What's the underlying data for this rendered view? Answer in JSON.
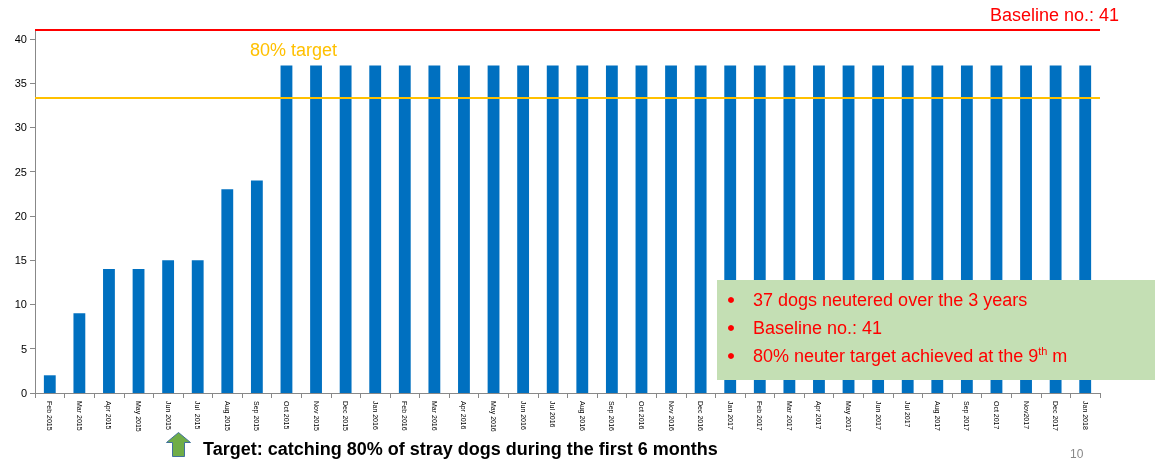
{
  "chart_data": {
    "type": "bar",
    "categories": [
      "Feb 2015",
      "Mar 2015",
      "Apr 2015",
      "May 2015",
      "Jun 2015",
      "Jul  2015",
      "Aug 2015",
      "Sep 2015",
      "Oct 2015",
      "Nov 2015",
      "Dec 2015",
      "Jan 2016",
      "Feb 2016",
      "Mar 2016",
      "Apr 2016",
      "May 2016",
      "Jun 2016",
      "Jul 2016",
      "Aug 2016",
      "Sep 2016",
      "Oct 2016",
      "Nov 2016",
      "Dec 2016",
      "Jan 2017",
      "Feb 2017",
      "Mar 2017",
      "Apr 2017",
      "May 2017",
      "Jun 2017",
      "Jul 2017",
      "Aug 2017",
      "Sep 2017",
      "Oct 2017",
      "Nov2017",
      "Dec 2017",
      "Jan 2018"
    ],
    "values": [
      2,
      9,
      14,
      14,
      15,
      15,
      23,
      24,
      37,
      37,
      37,
      37,
      37,
      37,
      37,
      37,
      37,
      37,
      37,
      37,
      37,
      37,
      37,
      37,
      37,
      37,
      37,
      37,
      37,
      37,
      37,
      37,
      37,
      37,
      37,
      37
    ],
    "color": "#0070c0",
    "ylim": [
      0,
      41
    ],
    "yticks": [
      0,
      5,
      10,
      15,
      20,
      25,
      30,
      35,
      40
    ],
    "grid": false,
    "ref_lines": [
      {
        "axis": "y",
        "value": 33.4,
        "label": "80% target",
        "color": "#ffc000"
      },
      {
        "axis": "y",
        "value": 41,
        "label": "Baseline no.: 41",
        "color": "#ff0000"
      }
    ],
    "annotations": [
      "37 dogs neutered over the 3 years",
      "Baseline no.: 41",
      "80% neuter target achieved at the 9$^{th}$ m",
      "Target: catching 80% of stray dogs during the first 6 months",
      "10"
    ]
  }
}
